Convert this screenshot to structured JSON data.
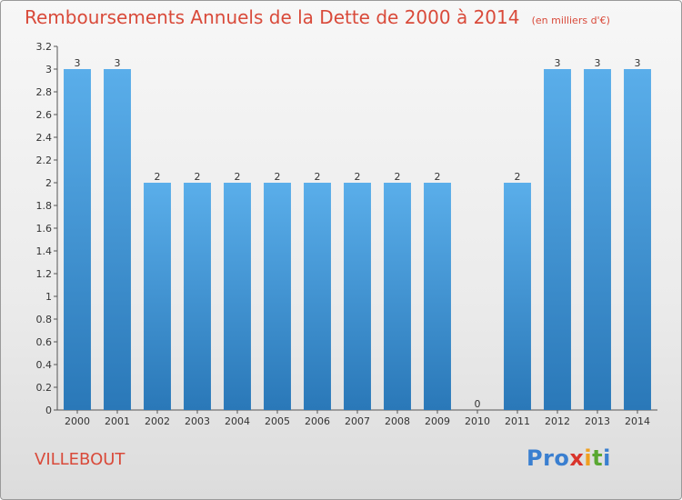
{
  "header": {
    "title": "Remboursements Annuels de la Dette de 2000 à 2014",
    "unit": "(en milliers d'€)"
  },
  "footer": {
    "city": "VILLEBOUT",
    "logo": "Proxiti"
  },
  "colors": {
    "title": "#d94a3a",
    "bar_top": "#5aaeea",
    "bar_bottom": "#2a78b8"
  },
  "chart_data": {
    "type": "bar",
    "title": "Remboursements Annuels de la Dette de 2000 à 2014",
    "xlabel": "",
    "ylabel": "",
    "ylim": [
      0,
      3.2
    ],
    "grid": false,
    "categories": [
      "2000",
      "2001",
      "2002",
      "2003",
      "2004",
      "2005",
      "2006",
      "2007",
      "2008",
      "2009",
      "2010",
      "2011",
      "2012",
      "2013",
      "2014"
    ],
    "values": [
      3,
      3,
      2,
      2,
      2,
      2,
      2,
      2,
      2,
      2,
      0,
      2,
      3,
      3,
      3
    ],
    "data_labels": [
      "3",
      "3",
      "2",
      "2",
      "2",
      "2",
      "2",
      "2",
      "2",
      "2",
      "0",
      "2",
      "3",
      "3",
      "3"
    ],
    "yticks": [
      0,
      0.2,
      0.4,
      0.6,
      0.8,
      1,
      1.2,
      1.4,
      1.6,
      1.8,
      2,
      2.2,
      2.4,
      2.6,
      2.8,
      3,
      3.2
    ],
    "ytick_labels": [
      "0",
      "0.2",
      "0.4",
      "0.6",
      "0.8",
      "1",
      "1.2",
      "1.4",
      "1.6",
      "1.8",
      "2",
      "2.2",
      "2.4",
      "2.6",
      "2.8",
      "3",
      "3.2"
    ]
  }
}
